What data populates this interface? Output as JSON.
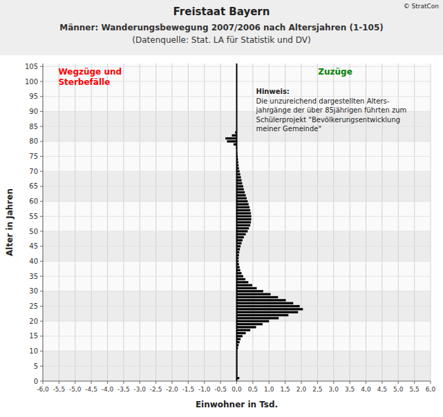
{
  "chart_data": {
    "type": "bar",
    "orientation": "horizontal",
    "title": "Freistaat Bayern",
    "subtitle": [
      "Männer: Wanderungsbewegung 2007/2006 nach Altersjahren (1-105)",
      "(Datenquelle: Stat. LA für Statistik und DV)"
    ],
    "x_label": "Einwohner in Tsd.",
    "y_label": "Alter in Jahren",
    "annotations": [
      {
        "text": [
          "Wegzüge und",
          "Sterbefälle"
        ],
        "color": "red"
      },
      {
        "text": [
          "Zuzüge"
        ],
        "color": "green"
      },
      {
        "text": [
          "Hinweis:",
          "Die unzureichend dargestellten Alters-",
          "jahrgänge der über 85jährigen führten zum",
          "Schülerprojekt \"Bevölkerungsentwicklung",
          "meiner Gemeinde\""
        ]
      },
      {
        "text": [
          "© StratCon"
        ]
      }
    ],
    "color": "#000000",
    "grid": true,
    "categories": [
      1,
      2,
      3,
      4,
      5,
      6,
      7,
      8,
      9,
      10,
      11,
      12,
      13,
      14,
      15,
      16,
      17,
      18,
      19,
      20,
      21,
      22,
      23,
      24,
      25,
      26,
      27,
      28,
      29,
      30,
      31,
      32,
      33,
      34,
      35,
      36,
      37,
      38,
      39,
      40,
      41,
      42,
      43,
      44,
      45,
      46,
      47,
      48,
      49,
      50,
      51,
      52,
      53,
      54,
      55,
      56,
      57,
      58,
      59,
      60,
      61,
      62,
      63,
      64,
      65,
      66,
      67,
      68,
      69,
      70,
      71,
      72,
      73,
      74,
      75,
      76,
      77,
      78,
      79,
      80,
      81,
      82,
      83,
      84,
      85,
      86,
      87,
      88,
      89,
      90,
      91,
      92,
      93,
      94,
      95,
      96,
      97,
      98,
      99,
      100,
      101,
      102,
      103,
      104,
      105
    ],
    "values": [
      0.08,
      0.02,
      0.02,
      0.02,
      0.02,
      0.02,
      0.02,
      0.02,
      0.02,
      0.02,
      0.04,
      0.06,
      0.09,
      0.12,
      0.18,
      0.28,
      0.42,
      0.6,
      0.8,
      1.0,
      1.3,
      1.6,
      1.9,
      2.05,
      1.95,
      1.75,
      1.52,
      1.28,
      1.05,
      0.82,
      0.62,
      0.48,
      0.36,
      0.27,
      0.2,
      0.15,
      0.11,
      0.09,
      0.07,
      0.06,
      0.06,
      0.07,
      0.08,
      0.1,
      0.12,
      0.15,
      0.18,
      0.22,
      0.28,
      0.34,
      0.38,
      0.42,
      0.44,
      0.45,
      0.45,
      0.44,
      0.42,
      0.4,
      0.37,
      0.34,
      0.31,
      0.28,
      0.25,
      0.22,
      0.2,
      0.17,
      0.15,
      0.13,
      0.11,
      0.09,
      0.07,
      0.06,
      0.05,
      0.04,
      0.03,
      0.02,
      0.01,
      -0.02,
      -0.1,
      -0.3,
      -0.35,
      -0.15,
      -0.05,
      0.0,
      0.0,
      0.0,
      0.0,
      0.0,
      0.0,
      0.0,
      0.0,
      0.0,
      0.0,
      0.0,
      0.0,
      0.0,
      0.0,
      0.0,
      0.0,
      0.0,
      0.0,
      0.0,
      0.0,
      0.0,
      0.0
    ],
    "xlim": [
      -6.0,
      6.0
    ],
    "xticks": [
      {
        "value": -6.0,
        "label": "-6,0"
      },
      {
        "value": -5.5,
        "label": "-5,5"
      },
      {
        "value": -5.0,
        "label": "-5,0"
      },
      {
        "value": -4.5,
        "label": "-4,5"
      },
      {
        "value": -4.0,
        "label": "-4,0"
      },
      {
        "value": -3.5,
        "label": "-3,5"
      },
      {
        "value": -3.0,
        "label": "-3,0"
      },
      {
        "value": -2.5,
        "label": "-2,5"
      },
      {
        "value": -2.0,
        "label": "-2,0"
      },
      {
        "value": -1.5,
        "label": "-1,5"
      },
      {
        "value": -1.0,
        "label": "-1,0"
      },
      {
        "value": -0.5,
        "label": "-0,5"
      },
      {
        "value": 0.0,
        "label": "0,0"
      },
      {
        "value": 0.5,
        "label": "0,5"
      },
      {
        "value": 1.0,
        "label": "1,0"
      },
      {
        "value": 1.5,
        "label": "1,5"
      },
      {
        "value": 2.0,
        "label": "2,0"
      },
      {
        "value": 2.5,
        "label": "2,5"
      },
      {
        "value": 3.0,
        "label": "3,0"
      },
      {
        "value": 3.5,
        "label": "3,5"
      },
      {
        "value": 4.0,
        "label": "4,0"
      },
      {
        "value": 4.5,
        "label": "4,5"
      },
      {
        "value": 5.0,
        "label": "5,0"
      },
      {
        "value": 5.5,
        "label": "5,5"
      },
      {
        "value": 6.0,
        "label": "6,0"
      }
    ],
    "ylim": [
      0,
      106
    ],
    "yticks": [
      0,
      5,
      10,
      15,
      20,
      25,
      30,
      35,
      40,
      45,
      50,
      55,
      60,
      65,
      70,
      75,
      80,
      85,
      90,
      95,
      100,
      105
    ]
  }
}
